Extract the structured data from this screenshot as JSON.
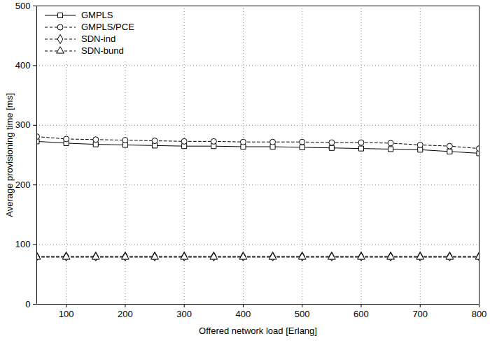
{
  "chart_data": {
    "type": "line",
    "x_label": "Offered network load [Erlang]",
    "y_label": "Average provisioning time [ms]",
    "x": [
      50,
      100,
      150,
      200,
      250,
      300,
      350,
      400,
      450,
      500,
      550,
      600,
      650,
      700,
      750,
      800
    ],
    "xlim": [
      50,
      800
    ],
    "xticks": [
      100,
      200,
      300,
      400,
      500,
      600,
      700,
      800
    ],
    "ylim": [
      0,
      500
    ],
    "yticks": [
      0,
      100,
      200,
      300,
      400,
      500
    ],
    "grid": true,
    "legend": "top-left",
    "series": [
      {
        "name": "GMPLS",
        "color": "#000000",
        "marker": "square",
        "line_style": "solid",
        "values": [
          273,
          270,
          268,
          267,
          266,
          265,
          265,
          264,
          264,
          263,
          262,
          261,
          260,
          259,
          256,
          253
        ]
      },
      {
        "name": "GMPLS/PCE",
        "color": "#000000",
        "marker": "circle",
        "line_style": "dashed",
        "values": [
          281,
          277,
          276,
          275,
          274,
          273,
          273,
          272,
          272,
          272,
          271,
          271,
          270,
          267,
          265,
          261
        ]
      },
      {
        "name": "SDN-ind",
        "color": "#000000",
        "marker": "diamond",
        "line_style": "dashed",
        "values": [
          80,
          80,
          80,
          80,
          80,
          80,
          80,
          80,
          80,
          80,
          80,
          80,
          80,
          80,
          80,
          80
        ]
      },
      {
        "name": "SDN-bund",
        "color": "#000000",
        "marker": "triangle",
        "line_style": "dashed",
        "values": [
          79,
          79,
          79,
          79,
          79,
          79,
          79,
          79,
          79,
          79,
          79,
          79,
          79,
          79,
          79,
          79
        ]
      }
    ]
  }
}
